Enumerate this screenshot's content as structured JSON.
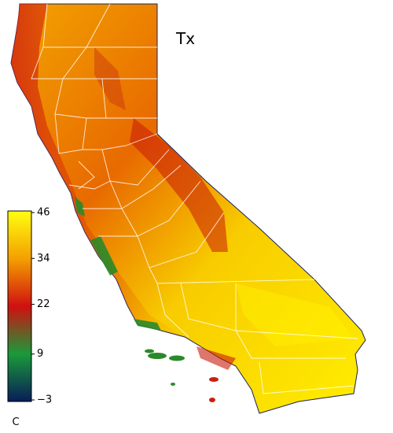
{
  "title": "Tx",
  "colorbar": {
    "range": [
      -3,
      46
    ],
    "ticks": [
      {
        "value": -3,
        "label": "−3"
      },
      9,
      22,
      34,
      46
    ],
    "unit": "C",
    "colors": [
      "#081d58",
      "#1a9a3a",
      "#d01010",
      "#f4a000",
      "#ffff10"
    ]
  }
}
